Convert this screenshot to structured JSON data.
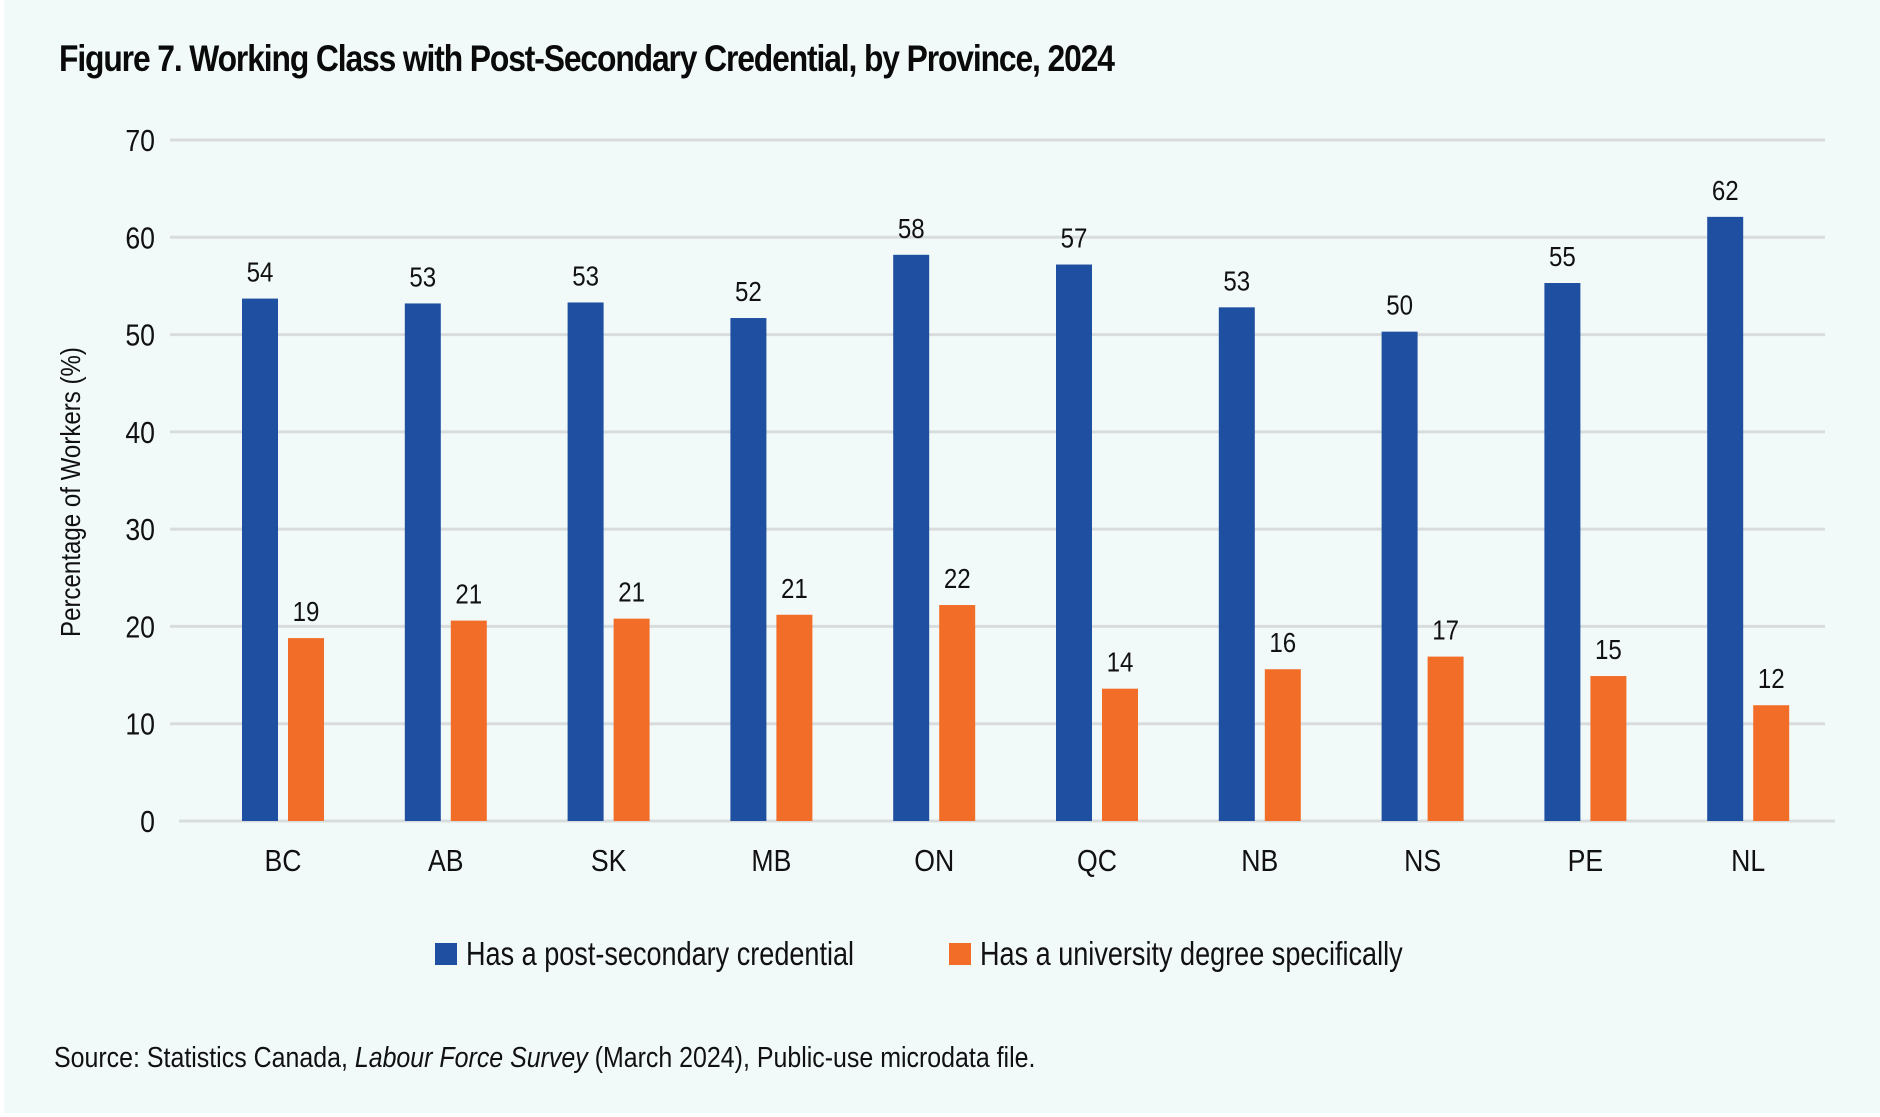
{
  "chart_data": {
    "type": "bar",
    "title": "Figure 7. Working Class with Post-Secondary Credential, by Province, 2024",
    "xlabel": "",
    "ylabel": "Percentage of Workers (%)",
    "ylim": [
      0,
      70
    ],
    "yticks": [
      0,
      10,
      20,
      30,
      40,
      50,
      60,
      70
    ],
    "ytick_labels": [
      "0",
      "10",
      "20",
      "30",
      "40",
      "50",
      "60",
      "70"
    ],
    "grid": true,
    "legend_position": "bottom-center",
    "categories": [
      "BC",
      "AB",
      "SK",
      "MB",
      "ON",
      "QC",
      "NB",
      "NS",
      "PE",
      "NL"
    ],
    "series": [
      {
        "name": "Has a post-secondary credential",
        "color": "#1F4FA0",
        "values": [
          53.7,
          53.2,
          53.3,
          51.7,
          58.2,
          57.2,
          52.8,
          50.3,
          55.3,
          62.1
        ],
        "data_labels": [
          "54",
          "53",
          "53",
          "52",
          "58",
          "57",
          "53",
          "50",
          "55",
          "62"
        ]
      },
      {
        "name": "Has a university degree specifically",
        "color": "#F26E28",
        "values": [
          18.8,
          20.6,
          20.8,
          21.2,
          22.2,
          13.6,
          15.6,
          16.9,
          14.9,
          11.9
        ],
        "data_labels": [
          "19",
          "21",
          "21",
          "21",
          "22",
          "14",
          "16",
          "17",
          "15",
          "12"
        ]
      }
    ]
  },
  "source": {
    "prefix": "Source: Statistics Canada, ",
    "italic": "Labour Force Survey",
    "suffix": " (March 2024), Public-use microdata file."
  },
  "colors": {
    "background": "#F2FAF9",
    "gridline": "#D9DCDD",
    "text": "#111111"
  }
}
